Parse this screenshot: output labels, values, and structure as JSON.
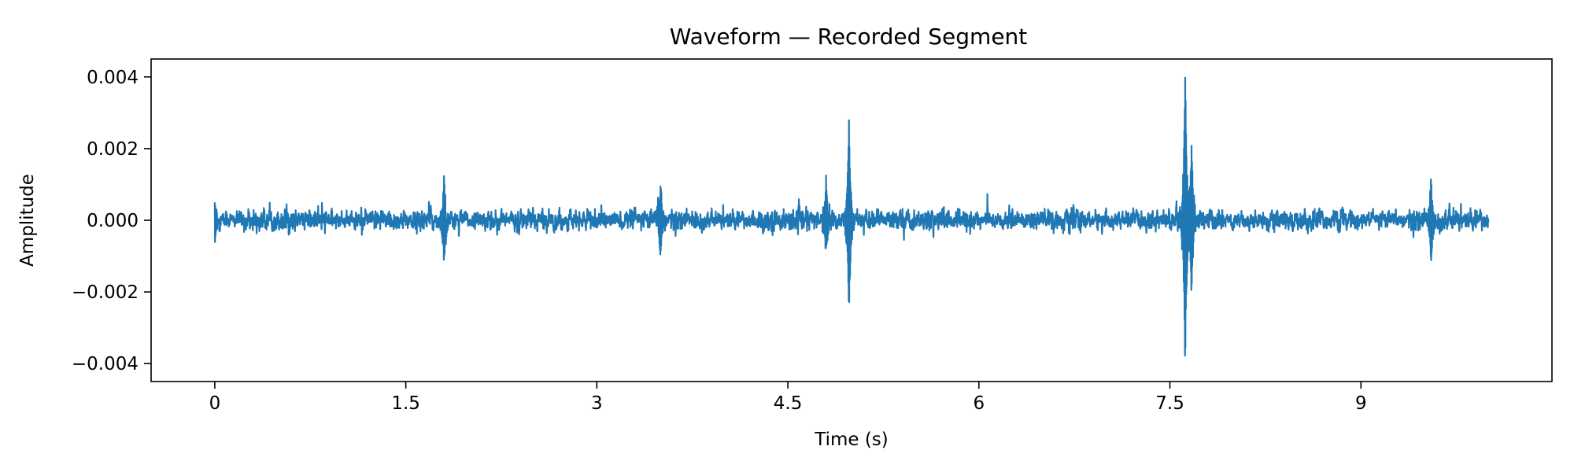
{
  "chart_data": {
    "type": "line",
    "title": "Waveform — Recorded Segment",
    "xlabel": "Time (s)",
    "ylabel": "Amplitude",
    "xlim": [
      -0.5,
      10.5
    ],
    "ylim": [
      -0.0045,
      0.0045
    ],
    "x_ticks": [
      0,
      1.5,
      3,
      4.5,
      6,
      7.5,
      9
    ],
    "x_tick_labels": [
      "0",
      "1.5",
      "3",
      "4.5",
      "6",
      "7.5",
      "9"
    ],
    "y_ticks": [
      -0.004,
      -0.002,
      0.0,
      0.002,
      0.004
    ],
    "y_tick_labels": [
      "−0.004",
      "−0.002",
      "0.000",
      "0.002",
      "0.004"
    ],
    "grid": false,
    "line_color": "#1f77b4",
    "series": [
      {
        "x_range": [
          0,
          10.0
        ],
        "baseline_amplitude": 0.0003,
        "burst_amplitude": 0.0008,
        "events": [
          {
            "t": 0.0,
            "peak": 0.0006
          },
          {
            "t": 1.8,
            "peak": 0.0012
          },
          {
            "t": 3.5,
            "peak": 0.0011
          },
          {
            "t": 4.8,
            "peak": 0.001
          },
          {
            "t": 4.98,
            "peak": 0.0027
          },
          {
            "t": 7.62,
            "peak": 0.0041
          },
          {
            "t": 7.67,
            "peak": 0.0021
          },
          {
            "t": 9.55,
            "peak": 0.0012
          }
        ]
      }
    ]
  }
}
